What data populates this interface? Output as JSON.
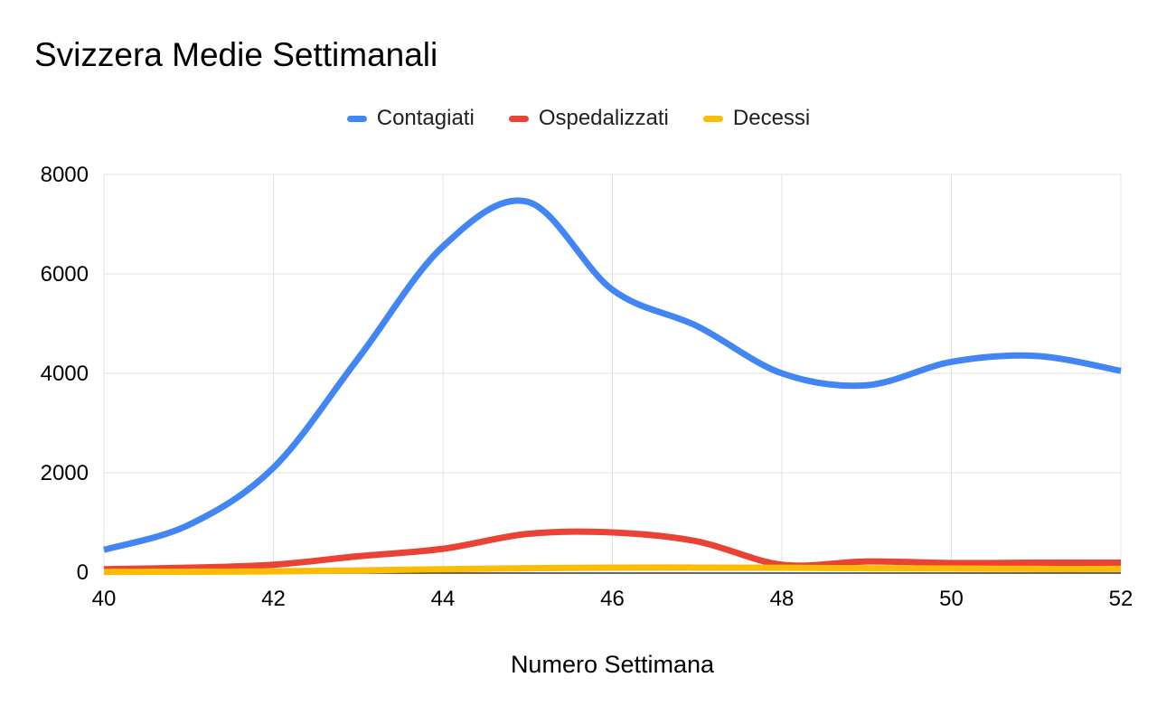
{
  "title": "Svizzera Medie Settimanali",
  "colors": {
    "contagiati": "#4285F4",
    "ospedalizzati": "#EA4335",
    "decessi": "#FBBC04",
    "gridline": "#E0E0E0",
    "axis_baseline": "#333333",
    "text": "#000000"
  },
  "chart_data": {
    "type": "line",
    "title": "Svizzera Medie Settimanali",
    "xlabel": "Numero Settimana",
    "ylabel": "",
    "x": [
      40,
      41,
      42,
      43,
      44,
      45,
      46,
      47,
      48,
      49,
      50,
      51,
      52
    ],
    "series": [
      {
        "name": "Contagiati",
        "color": "#4285F4",
        "values": [
          450,
          950,
          2100,
          4300,
          6550,
          7450,
          5680,
          4950,
          4000,
          3760,
          4230,
          4350,
          4050
        ]
      },
      {
        "name": "Ospedalizzati",
        "color": "#EA4335",
        "values": [
          60,
          90,
          150,
          320,
          470,
          770,
          800,
          620,
          150,
          215,
          185,
          190,
          190
        ]
      },
      {
        "name": "Decessi",
        "color": "#FBBC04",
        "values": [
          5,
          10,
          15,
          35,
          60,
          80,
          90,
          92,
          88,
          80,
          72,
          65,
          65
        ]
      }
    ],
    "xlim": [
      40,
      52
    ],
    "ylim": [
      0,
      8000
    ],
    "x_ticks": [
      40,
      42,
      44,
      46,
      48,
      50,
      52
    ],
    "y_ticks": [
      0,
      2000,
      4000,
      6000,
      8000
    ],
    "grid": true,
    "line_smoothing": true,
    "legend_position": "top"
  }
}
